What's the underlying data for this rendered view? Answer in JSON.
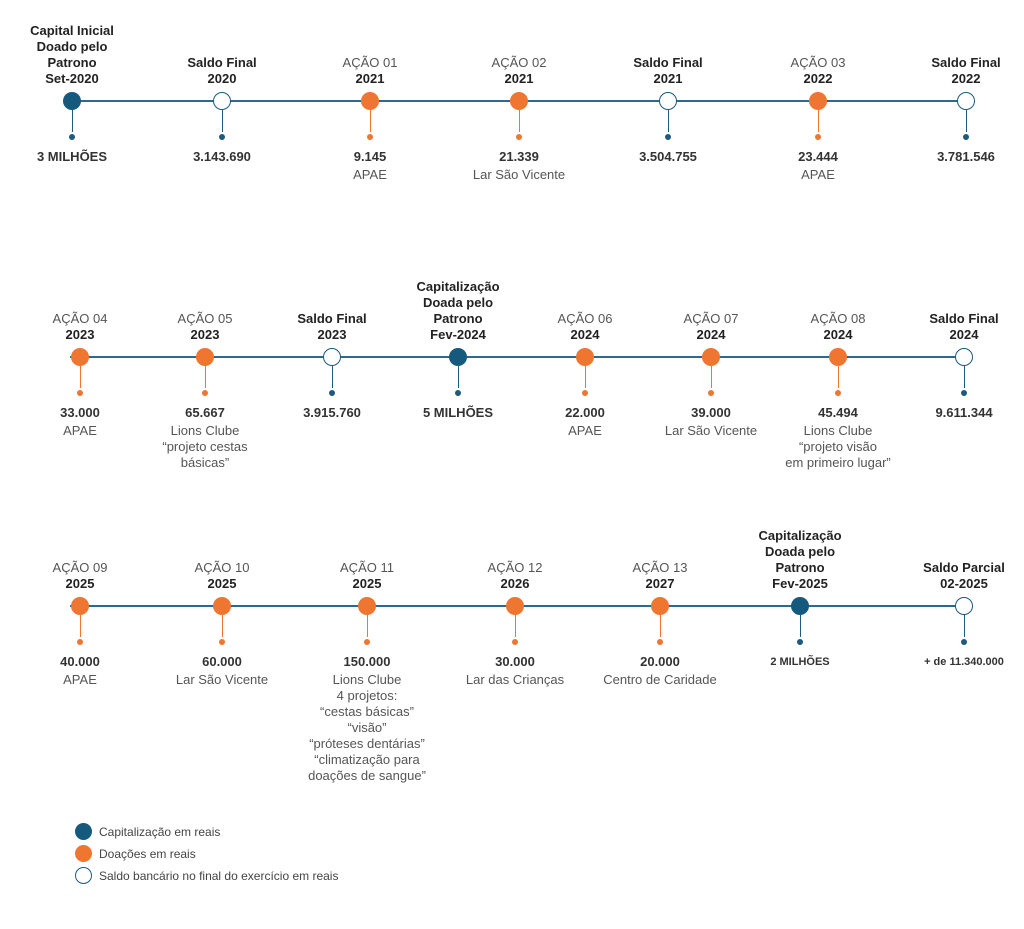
{
  "colors": {
    "capitalization": "#155a7c",
    "donation": "#ee7630",
    "balance_border": "#1d5a7d",
    "line": "#2b6a8f"
  },
  "rows": [
    {
      "events": [
        {
          "kind": "cap",
          "label": [
            "Capital Inicial",
            "Doado pelo",
            "Patrono",
            "Set-2020"
          ],
          "label_bold": true,
          "value": "3 MILHÕES",
          "desc": []
        },
        {
          "kind": "bal",
          "label": [
            "Saldo Final",
            "2020"
          ],
          "label_bold": true,
          "value": "3.143.690",
          "desc": []
        },
        {
          "kind": "don",
          "label": [
            "AÇÃO 01",
            "2021"
          ],
          "label_bold": false,
          "value": "9.145",
          "desc": [
            "APAE"
          ]
        },
        {
          "kind": "don",
          "label": [
            "AÇÃO 02",
            "2021"
          ],
          "label_bold": false,
          "value": "21.339",
          "desc": [
            "Lar São Vicente"
          ]
        },
        {
          "kind": "bal",
          "label": [
            "Saldo Final",
            "2021"
          ],
          "label_bold": true,
          "value": "3.504.755",
          "desc": []
        },
        {
          "kind": "don",
          "label": [
            "AÇÃO 03",
            "2022"
          ],
          "label_bold": false,
          "value": "23.444",
          "desc": [
            "APAE"
          ]
        },
        {
          "kind": "bal",
          "label": [
            "Saldo Final",
            "2022"
          ],
          "label_bold": true,
          "value": "3.781.546",
          "desc": []
        }
      ]
    },
    {
      "events": [
        {
          "kind": "don",
          "label": [
            "AÇÃO 04",
            "2023"
          ],
          "label_bold": false,
          "value": "33.000",
          "desc": [
            "APAE"
          ]
        },
        {
          "kind": "don",
          "label": [
            "AÇÃO 05",
            "2023"
          ],
          "label_bold": false,
          "value": "65.667",
          "desc": [
            "Lions Clube",
            "“projeto cestas",
            "básicas”"
          ]
        },
        {
          "kind": "bal",
          "label": [
            "Saldo Final",
            "2023"
          ],
          "label_bold": true,
          "value": "3.915.760",
          "desc": []
        },
        {
          "kind": "cap",
          "label": [
            "Capitalização",
            "Doada pelo",
            "Patrono",
            "Fev-2024"
          ],
          "label_bold": true,
          "value": "5 MILHÕES",
          "desc": []
        },
        {
          "kind": "don",
          "label": [
            "AÇÃO 06",
            "2024"
          ],
          "label_bold": false,
          "value": "22.000",
          "desc": [
            "APAE"
          ]
        },
        {
          "kind": "don",
          "label": [
            "AÇÃO 07",
            "2024"
          ],
          "label_bold": false,
          "value": "39.000",
          "desc": [
            "Lar São Vicente"
          ]
        },
        {
          "kind": "don",
          "label": [
            "AÇÃO 08",
            "2024"
          ],
          "label_bold": false,
          "value": "45.494",
          "desc": [
            "Lions Clube",
            "“projeto visão",
            "em primeiro lugar”"
          ]
        },
        {
          "kind": "bal",
          "label": [
            "Saldo Final",
            "2024"
          ],
          "label_bold": true,
          "value": "9.611.344",
          "desc": []
        }
      ]
    },
    {
      "events": [
        {
          "kind": "don",
          "label": [
            "AÇÃO 09",
            "2025"
          ],
          "label_bold": false,
          "value": "40.000",
          "desc": [
            "APAE"
          ]
        },
        {
          "kind": "don",
          "label": [
            "AÇÃO 10",
            "2025"
          ],
          "label_bold": false,
          "value": "60.000",
          "desc": [
            "Lar São Vicente"
          ]
        },
        {
          "kind": "don",
          "label": [
            "AÇÃO 11",
            "2025"
          ],
          "label_bold": false,
          "value": "150.000",
          "desc": [
            "Lions Clube",
            "4 projetos:",
            "“cestas básicas”",
            "“visão”",
            "“próteses dentárias”",
            "“climatização para",
            "doações de sangue”"
          ]
        },
        {
          "kind": "don",
          "label": [
            "AÇÃO 12",
            "2026"
          ],
          "label_bold": false,
          "value": "30.000",
          "desc": [
            "Lar das Crianças"
          ]
        },
        {
          "kind": "don",
          "label": [
            "AÇÃO 13",
            "2027"
          ],
          "label_bold": false,
          "value": "20.000",
          "desc": [
            "Centro de Caridade"
          ]
        },
        {
          "kind": "cap",
          "label": [
            "Capitalização",
            "Doada pelo",
            "Patrono",
            "Fev-2025"
          ],
          "label_bold": true,
          "value": "2 MILHÕES",
          "desc": [],
          "value_small": true
        },
        {
          "kind": "bal",
          "label": [
            "Saldo Parcial",
            "02-2025"
          ],
          "label_bold": true,
          "value": "+ de 11.340.000",
          "desc": [],
          "value_small": true
        }
      ]
    }
  ],
  "legend": [
    {
      "kind": "cap",
      "text": "Capitalização em reais"
    },
    {
      "kind": "don",
      "text": "Doações em reais"
    },
    {
      "kind": "bal",
      "text": "Saldo bancário no final do exercício em reais"
    }
  ]
}
